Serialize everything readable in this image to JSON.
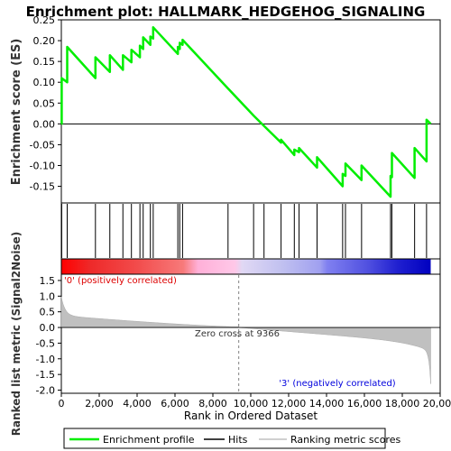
{
  "chart_data": {
    "type": "line",
    "title": "Enrichment plot: HALLMARK_HEDGEHOG_SIGNALING",
    "ylabel_top": "Enrichment score (ES)",
    "ylabel_bottom": "Ranked list metric (Signal2Noise)",
    "xlabel": "Rank in Ordered Dataset",
    "xlim": [
      0,
      20000
    ],
    "x_ticks": [
      0,
      2000,
      4000,
      6000,
      8000,
      10000,
      12000,
      14000,
      16000,
      18000,
      20000
    ],
    "x_tick_labels": [
      "0",
      "2,000",
      "4,000",
      "6,000",
      "8,000",
      "10,000",
      "12,000",
      "14,000",
      "16,000",
      "18,000",
      "20,000"
    ],
    "es_ylim": [
      -0.19,
      0.25
    ],
    "es_ticks": [
      0.25,
      0.2,
      0.15,
      0.1,
      0.05,
      0.0,
      -0.05,
      -0.1,
      -0.15
    ],
    "es_tick_labels": [
      "0.25",
      "0.20",
      "0.15",
      "0.10",
      "0.05",
      "0.00",
      "-0.05",
      "-0.10",
      "-0.15"
    ],
    "metric_ylim": [
      -2.1,
      1.7
    ],
    "metric_ticks": [
      1.5,
      1.0,
      0.5,
      0.0,
      -0.5,
      -1.0,
      -1.5,
      -2.0
    ],
    "metric_tick_labels": [
      "1.5",
      "1.0",
      "0.5",
      "0.0",
      "-0.5",
      "-1.0",
      "-1.5",
      "-2.0"
    ],
    "n_genes": 19500,
    "zero_cross_rank": 9366,
    "zero_cross_label": "Zero cross at 9366",
    "pos_label": "'0' (positively correlated)",
    "neg_label": "'3' (negatively correlated)",
    "hits": [
      20,
      310,
      1800,
      2560,
      3250,
      3700,
      4150,
      4320,
      4700,
      4850,
      6150,
      6250,
      6400,
      8800,
      10150,
      10700,
      11600,
      12300,
      12550,
      13500,
      14850,
      15000,
      15850,
      17380,
      17450,
      18650,
      19280
    ],
    "es_curve": {
      "x": [
        0,
        20,
        20,
        310,
        310,
        1800,
        1800,
        2560,
        2560,
        3250,
        3250,
        3700,
        3700,
        4150,
        4150,
        4320,
        4320,
        4700,
        4700,
        4850,
        4850,
        6150,
        6150,
        6250,
        6250,
        6400,
        6400,
        8800,
        8800,
        10150,
        10150,
        10700,
        10700,
        11600,
        11600,
        12300,
        12300,
        12550,
        12550,
        13500,
        13500,
        14850,
        14850,
        15000,
        15000,
        15850,
        15850,
        17380,
        17380,
        17450,
        17450,
        18650,
        18650,
        19280,
        19280,
        19500
      ],
      "y": [
        0.0,
        0.0,
        0.11,
        0.1,
        0.185,
        0.11,
        0.16,
        0.125,
        0.165,
        0.13,
        0.165,
        0.148,
        0.178,
        0.16,
        0.188,
        0.18,
        0.208,
        0.19,
        0.21,
        0.205,
        0.232,
        0.168,
        0.185,
        0.18,
        0.195,
        0.19,
        0.202,
        0.085,
        0.085,
        0.02,
        0.02,
        -0.005,
        -0.005,
        -0.045,
        -0.038,
        -0.075,
        -0.062,
        -0.068,
        -0.058,
        -0.105,
        -0.08,
        -0.15,
        -0.12,
        -0.125,
        -0.095,
        -0.135,
        -0.1,
        -0.175,
        -0.125,
        -0.128,
        -0.07,
        -0.13,
        -0.058,
        -0.09,
        0.01,
        0.0
      ]
    },
    "legend": [
      "Enrichment profile",
      "Hits",
      "Ranking metric scores"
    ],
    "colors": {
      "es_line": "#00ee00",
      "hit": "#000000",
      "metric_fill": "#c0c0c0",
      "pos_text": "#dd0000",
      "neg_text": "#0000dd",
      "zero_line": "#808080"
    }
  }
}
